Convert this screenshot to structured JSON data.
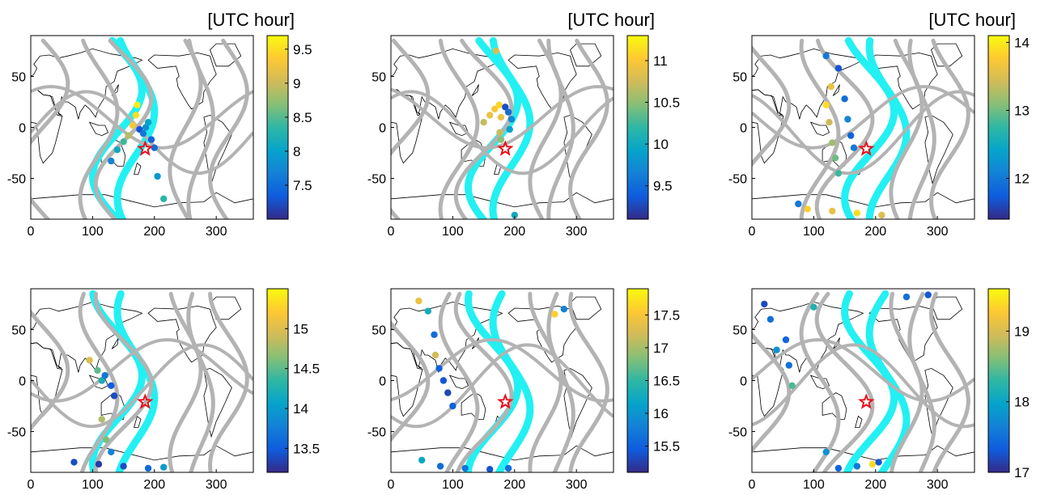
{
  "figure": {
    "colorbar_unit": "[UTC hour]"
  },
  "colors": {
    "track_gray": "#b3b3b3",
    "track_cyan": "#22f0f2",
    "coast": "#000000",
    "star": "#e8101c",
    "colormap_parula": [
      "#352a87",
      "#0f5cdd",
      "#1481d6",
      "#06a4ca",
      "#2eb7a4",
      "#87bf77",
      "#d1bb59",
      "#fec832",
      "#f9fb0e"
    ]
  },
  "chart_data": [
    {
      "type": "scatter",
      "panel": "top-left",
      "show_unit": true,
      "xlim": [
        0,
        360
      ],
      "ylim": [
        -90,
        90
      ],
      "xticks": [
        "0",
        "100",
        "200",
        "300"
      ],
      "yticks": [
        "50",
        "0",
        "-50"
      ],
      "colorbar": {
        "range": [
          7.0,
          9.7
        ],
        "ticks": [
          "9.5",
          "9",
          "8.5",
          "8",
          "7.5"
        ]
      },
      "star": {
        "lon": 185,
        "lat": -21
      },
      "points": [
        [
          130,
          -33,
          7.7
        ],
        [
          140,
          -22,
          8.1
        ],
        [
          150,
          -14,
          8.4
        ],
        [
          158,
          -8,
          8.9
        ],
        [
          165,
          2,
          9.3
        ],
        [
          170,
          12,
          9.5
        ],
        [
          172,
          22,
          9.6
        ],
        [
          176,
          -2,
          7.3
        ],
        [
          182,
          -6,
          7.6
        ],
        [
          186,
          0,
          7.8
        ],
        [
          190,
          5,
          8.0
        ],
        [
          195,
          -12,
          7.4
        ],
        [
          200,
          -20,
          7.5
        ],
        [
          205,
          -48,
          7.9
        ],
        [
          215,
          -70,
          8.3
        ]
      ]
    },
    {
      "type": "scatter",
      "panel": "top-middle",
      "show_unit": true,
      "xlim": [
        0,
        360
      ],
      "ylim": [
        -90,
        90
      ],
      "xticks": [
        "0",
        "100",
        "200",
        "300"
      ],
      "yticks": [
        "50",
        "0",
        "-50"
      ],
      "colorbar": {
        "range": [
          9.1,
          11.3
        ],
        "ticks": [
          "11",
          "10.5",
          "10",
          "9.5"
        ]
      },
      "star": {
        "lon": 185,
        "lat": -21
      },
      "points": [
        [
          150,
          5,
          10.7
        ],
        [
          160,
          12,
          10.9
        ],
        [
          168,
          18,
          11.0
        ],
        [
          175,
          22,
          11.1
        ],
        [
          178,
          10,
          10.9
        ],
        [
          176,
          -5,
          10.7
        ],
        [
          178,
          -12,
          10.5
        ],
        [
          185,
          20,
          9.3
        ],
        [
          190,
          15,
          9.5
        ],
        [
          195,
          8,
          9.7
        ],
        [
          192,
          -2,
          9.9
        ],
        [
          170,
          75,
          10.8
        ],
        [
          200,
          -86,
          10.0
        ]
      ]
    },
    {
      "type": "scatter",
      "panel": "top-right",
      "show_unit": true,
      "xlim": [
        0,
        360
      ],
      "ylim": [
        -90,
        90
      ],
      "xticks": [
        "0",
        "100",
        "200",
        "300"
      ],
      "yticks": [
        "50",
        "0",
        "-50"
      ],
      "colorbar": {
        "range": [
          11.4,
          14.1
        ],
        "ticks": [
          "14",
          "13",
          "12"
        ]
      },
      "star": {
        "lon": 185,
        "lat": -21
      },
      "points": [
        [
          120,
          70,
          12.0
        ],
        [
          128,
          40,
          13.6
        ],
        [
          120,
          22,
          13.9
        ],
        [
          125,
          5,
          13.4
        ],
        [
          130,
          -15,
          13.2
        ],
        [
          135,
          -30,
          13.0
        ],
        [
          140,
          -45,
          12.8
        ],
        [
          140,
          58,
          11.7
        ],
        [
          150,
          28,
          11.9
        ],
        [
          155,
          8,
          12.1
        ],
        [
          160,
          -8,
          11.8
        ],
        [
          165,
          -20,
          12.0
        ],
        [
          90,
          -80,
          13.8
        ],
        [
          130,
          -82,
          13.6
        ],
        [
          170,
          -84,
          13.9
        ],
        [
          210,
          -86,
          13.5
        ],
        [
          75,
          -75,
          12.0
        ]
      ]
    },
    {
      "type": "scatter",
      "panel": "bottom-left",
      "show_unit": false,
      "xlim": [
        0,
        360
      ],
      "ylim": [
        -90,
        90
      ],
      "xticks": [
        "0",
        "100",
        "200",
        "300"
      ],
      "yticks": [
        "50",
        "0",
        "-50"
      ],
      "colorbar": {
        "range": [
          13.2,
          15.5
        ],
        "ticks": [
          "15",
          "14.5",
          "14",
          "13.5"
        ]
      },
      "star": {
        "lon": 185,
        "lat": -21
      },
      "points": [
        [
          95,
          20,
          15.0
        ],
        [
          108,
          10,
          14.5
        ],
        [
          115,
          0,
          14.2
        ],
        [
          120,
          5,
          13.7
        ],
        [
          130,
          -5,
          13.5
        ],
        [
          135,
          -15,
          13.4
        ],
        [
          115,
          -38,
          14.8
        ],
        [
          122,
          -58,
          14.6
        ],
        [
          130,
          -70,
          13.8
        ],
        [
          70,
          -80,
          13.4
        ],
        [
          110,
          -82,
          13.3
        ],
        [
          150,
          -84,
          13.4
        ],
        [
          190,
          -86,
          13.6
        ],
        [
          215,
          -85,
          14.0
        ]
      ]
    },
    {
      "type": "scatter",
      "panel": "bottom-middle",
      "show_unit": false,
      "xlim": [
        0,
        360
      ],
      "ylim": [
        -90,
        90
      ],
      "xticks": [
        "0",
        "100",
        "200",
        "300"
      ],
      "yticks": [
        "50",
        "0",
        "-50"
      ],
      "colorbar": {
        "range": [
          15.1,
          17.9
        ],
        "ticks": [
          "17.5",
          "17",
          "16.5",
          "16",
          "15.5"
        ]
      },
      "star": {
        "lon": 185,
        "lat": -21
      },
      "points": [
        [
          45,
          78,
          17.4
        ],
        [
          60,
          68,
          16.3
        ],
        [
          70,
          45,
          15.6
        ],
        [
          72,
          25,
          17.2
        ],
        [
          78,
          12,
          15.5
        ],
        [
          85,
          0,
          15.4
        ],
        [
          92,
          -12,
          15.3
        ],
        [
          100,
          -25,
          15.5
        ],
        [
          265,
          65,
          17.6
        ],
        [
          280,
          70,
          15.8
        ],
        [
          50,
          -78,
          16.2
        ],
        [
          80,
          -84,
          15.6
        ],
        [
          120,
          -86,
          15.7
        ],
        [
          160,
          -87,
          15.4
        ],
        [
          190,
          -86,
          15.6
        ]
      ]
    },
    {
      "type": "scatter",
      "panel": "bottom-right",
      "show_unit": false,
      "xlim": [
        0,
        360
      ],
      "ylim": [
        -90,
        90
      ],
      "xticks": [
        "0",
        "100",
        "200",
        "300"
      ],
      "yticks": [
        "50",
        "0",
        "-50"
      ],
      "colorbar": {
        "range": [
          17.0,
          19.6
        ],
        "ticks": [
          "19",
          "18",
          "17"
        ]
      },
      "star": {
        "lon": 185,
        "lat": -21
      },
      "points": [
        [
          20,
          75,
          17.2
        ],
        [
          30,
          60,
          17.5
        ],
        [
          40,
          30,
          17.8
        ],
        [
          55,
          40,
          17.4
        ],
        [
          60,
          15,
          17.5
        ],
        [
          65,
          -5,
          18.4
        ],
        [
          100,
          72,
          18.2
        ],
        [
          120,
          -70,
          17.8
        ],
        [
          170,
          -84,
          17.6
        ],
        [
          195,
          -82,
          19.4
        ],
        [
          205,
          -80,
          17.3
        ],
        [
          250,
          82,
          17.5
        ],
        [
          285,
          84,
          17.3
        ],
        [
          140,
          -86,
          17.4
        ]
      ]
    }
  ]
}
